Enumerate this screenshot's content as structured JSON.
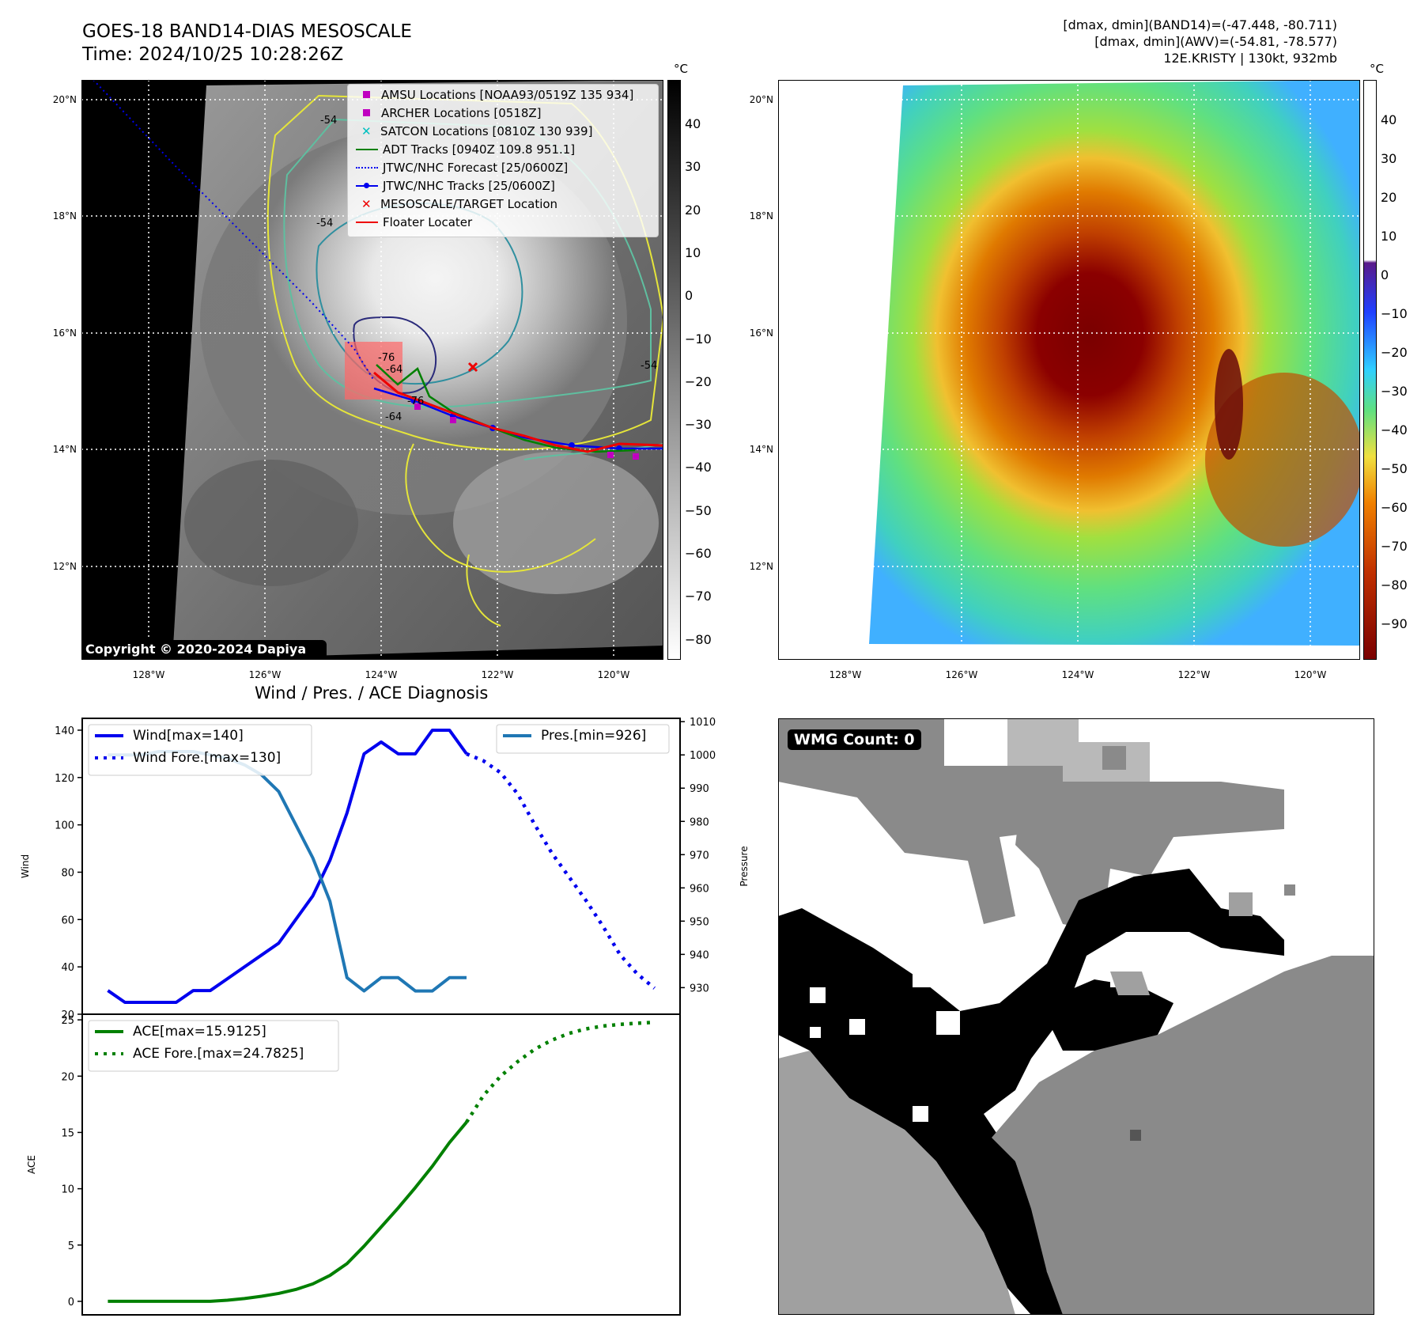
{
  "header": {
    "title": "GOES-18 BAND14-DIAS MESOSCALE",
    "time": "Time: 2024/10/25 10:28:26Z",
    "dmax_band14": "[dmax, dmin](BAND14)=(-47.448, -80.711)",
    "dmax_awv": "[dmax, dmin](AWV)=(-54.81, -78.577)",
    "storm": "12E.KRISTY | 130kt, 932mb"
  },
  "colors": {
    "wind": "#0000ee",
    "pressure": "#1f77b4",
    "ace": "#008000",
    "adt": "#008000",
    "amsu": "#c000c0",
    "satcon": "#00c0c0",
    "target": "#ee0000"
  },
  "map_left": {
    "unit": "°C",
    "colorbar_ticks": [
      "40",
      "30",
      "20",
      "10",
      "0",
      "−10",
      "−20",
      "−30",
      "−40",
      "−50",
      "−60",
      "−70",
      "−80"
    ],
    "lat_labels": [
      "20°N",
      "18°N",
      "16°N",
      "14°N",
      "12°N"
    ],
    "lon_labels": [
      "128°W",
      "126°W",
      "124°W",
      "122°W",
      "120°W"
    ],
    "copyright": "Copyright © 2020-2024 Dapiya",
    "contour_labels": [
      "-54",
      "-54",
      "-64",
      "-64",
      "-76",
      "-54",
      "-76"
    ],
    "legend": [
      {
        "label": "AMSU Locations [NOAA93/0519Z 135 934]",
        "icon": "square-marker"
      },
      {
        "label": "ARCHER Locations [0518Z]",
        "icon": "square-marker"
      },
      {
        "label": "SATCON Locations [0810Z 130 939]",
        "icon": "x-marker"
      },
      {
        "label": "ADT Tracks [0940Z 109.8 951.1]",
        "icon": "solid-line"
      },
      {
        "label": "JTWC/NHC Forecast [25/0600Z]",
        "icon": "dotted-line"
      },
      {
        "label": "JTWC/NHC Tracks [25/0600Z]",
        "icon": "line-dot"
      },
      {
        "label": "MESOSCALE/TARGET Location",
        "icon": "x-marker"
      },
      {
        "label": "Floater Locater",
        "icon": "solid-line"
      }
    ]
  },
  "map_right": {
    "unit": "°C",
    "colorbar_ticks": [
      "40",
      "30",
      "20",
      "10",
      "0",
      "−10",
      "−20",
      "−30",
      "−40",
      "−50",
      "−60",
      "−70",
      "−80",
      "−90"
    ],
    "lat_labels": [
      "20°N",
      "18°N",
      "16°N",
      "14°N",
      "12°N"
    ],
    "lon_labels": [
      "128°W",
      "126°W",
      "124°W",
      "122°W",
      "120°W"
    ]
  },
  "wmg": {
    "label": "WMG Count: 0"
  },
  "chart_data": [
    {
      "type": "line",
      "title": "Wind / Pres. / ACE Diagnosis",
      "ylabel": "Wind",
      "y2label": "Pressure",
      "ylim": [
        20,
        145
      ],
      "y2lim": [
        922,
        1011
      ],
      "yticks": [
        20,
        40,
        60,
        80,
        100,
        120,
        140
      ],
      "y2ticks": [
        930,
        940,
        950,
        960,
        970,
        980,
        990,
        1000,
        1010
      ],
      "series": [
        {
          "name": "Wind[max=140]",
          "axis": "left",
          "style": "solid",
          "x": [
            0,
            1,
            2,
            3,
            4,
            5,
            6,
            7,
            8,
            9,
            10,
            11,
            12,
            13,
            14,
            15,
            16,
            17,
            18,
            19,
            20,
            21
          ],
          "values": [
            30,
            25,
            25,
            25,
            25,
            30,
            30,
            35,
            40,
            45,
            50,
            60,
            70,
            85,
            105,
            130,
            135,
            130,
            130,
            140,
            140,
            130
          ]
        },
        {
          "name": "Wind Fore.[max=130]",
          "axis": "left",
          "style": "dotted",
          "x": [
            21,
            22,
            23,
            24,
            25,
            26,
            27,
            28,
            29,
            30,
            31,
            32
          ],
          "values": [
            130,
            127,
            122,
            113,
            100,
            88,
            78,
            68,
            57,
            45,
            37,
            31
          ]
        },
        {
          "name": "Pres.[min=926]",
          "axis": "right",
          "style": "solid",
          "x": [
            0,
            1,
            2,
            3,
            4,
            5,
            6,
            7,
            8,
            9,
            10,
            11,
            12,
            13,
            14,
            15,
            16,
            17,
            18,
            19,
            20,
            21
          ],
          "values": [
            1000,
            1000,
            1000,
            1001,
            1001,
            1001,
            1000,
            999,
            997,
            994,
            989,
            979,
            969,
            956,
            933,
            929,
            933,
            933,
            929,
            929,
            933,
            933
          ]
        }
      ]
    },
    {
      "type": "line",
      "ylabel": "ACE",
      "ylim": [
        -1.2,
        25.5
      ],
      "yticks": [
        0,
        5,
        10,
        15,
        20,
        25
      ],
      "series": [
        {
          "name": "ACE[max=15.9125]",
          "style": "solid",
          "x": [
            0,
            1,
            2,
            3,
            4,
            5,
            6,
            7,
            8,
            9,
            10,
            11,
            12,
            13,
            14,
            15,
            16,
            17,
            18,
            19,
            20,
            21
          ],
          "values": [
            0,
            0,
            0,
            0,
            0,
            0,
            0,
            0.1,
            0.25,
            0.45,
            0.7,
            1.05,
            1.55,
            2.3,
            3.35,
            4.9,
            6.6,
            8.3,
            10.1,
            12.0,
            14.1,
            15.9125
          ]
        },
        {
          "name": "ACE Fore.[max=24.7825]",
          "style": "dotted",
          "x": [
            21,
            22,
            23,
            24,
            25,
            26,
            27,
            28,
            29,
            30,
            31,
            32
          ],
          "values": [
            15.9125,
            18.3,
            20.0,
            21.3,
            22.4,
            23.2,
            23.8,
            24.2,
            24.45,
            24.6,
            24.7,
            24.7825
          ]
        }
      ]
    }
  ]
}
